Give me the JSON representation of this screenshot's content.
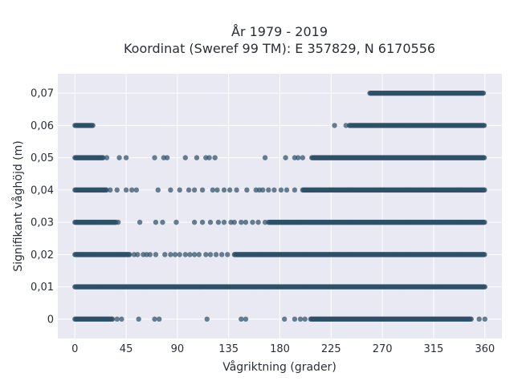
{
  "chart_data": {
    "type": "scatter",
    "title": "År 1979 - 2019",
    "subtitle": "Koordinat (Sweref 99 TM): E 357829, N 6170556",
    "xlabel": "Vågriktning (grader)",
    "ylabel": "Signifikant våghöjd (m)",
    "xlim": [
      -15,
      375
    ],
    "ylim": [
      -0.006,
      0.076
    ],
    "x_ticks": [
      0,
      45,
      90,
      135,
      180,
      225,
      270,
      315,
      360
    ],
    "x_tick_labels": [
      "0",
      "45",
      "90",
      "135",
      "180",
      "225",
      "270",
      "315",
      "360"
    ],
    "y_ticks": [
      0,
      0.01,
      0.02,
      0.03,
      0.04,
      0.05,
      0.06,
      0.07
    ],
    "y_tick_labels": [
      "0",
      "0,01",
      "0,02",
      "0,03",
      "0,04",
      "0,05",
      "0,06",
      "0,07"
    ],
    "grid": true,
    "colors": {
      "marker": "#2e5068",
      "plot_background": "#e8e9f2",
      "grid": "#ffffff"
    },
    "series": [
      {
        "y": 0.07,
        "dense_ranges": [
          [
            259,
            359
          ]
        ],
        "points": []
      },
      {
        "y": 0.06,
        "dense_ranges": [
          [
            0,
            16
          ],
          [
            241,
            360
          ]
        ],
        "points": [
          228,
          238
        ]
      },
      {
        "y": 0.05,
        "dense_ranges": [
          [
            0,
            25
          ],
          [
            208,
            360
          ]
        ],
        "points": [
          28,
          39,
          45,
          70,
          78,
          81,
          97,
          107,
          115,
          118,
          123,
          167,
          185,
          193,
          196,
          200
        ]
      },
      {
        "y": 0.04,
        "dense_ranges": [
          [
            0,
            28
          ],
          [
            200,
            360
          ]
        ],
        "points": [
          31,
          37,
          45,
          50,
          54,
          73,
          84,
          92,
          100,
          105,
          112,
          121,
          125,
          131,
          136,
          142,
          151,
          159,
          162,
          165,
          170,
          175,
          181,
          186,
          193
        ]
      },
      {
        "y": 0.03,
        "dense_ranges": [
          [
            0,
            36
          ],
          [
            170,
            360
          ]
        ],
        "points": [
          38,
          57,
          71,
          77,
          89,
          105,
          112,
          119,
          126,
          131,
          137,
          140,
          146,
          150,
          156,
          161,
          167
        ]
      },
      {
        "y": 0.02,
        "dense_ranges": [
          [
            0,
            48
          ],
          [
            140,
            360
          ]
        ],
        "points": [
          52,
          55,
          60,
          63,
          66,
          71,
          79,
          84,
          88,
          92,
          97,
          101,
          105,
          109,
          115,
          119,
          124,
          129,
          134
        ]
      },
      {
        "y": 0.01,
        "dense_ranges": [
          [
            0,
            360
          ]
        ],
        "points": []
      },
      {
        "y": 0,
        "dense_ranges": [
          [
            0,
            33
          ],
          [
            207,
            348
          ]
        ],
        "points": [
          37,
          41,
          56,
          70,
          74,
          116,
          146,
          150,
          184,
          193,
          198,
          202,
          355,
          360
        ]
      }
    ]
  }
}
